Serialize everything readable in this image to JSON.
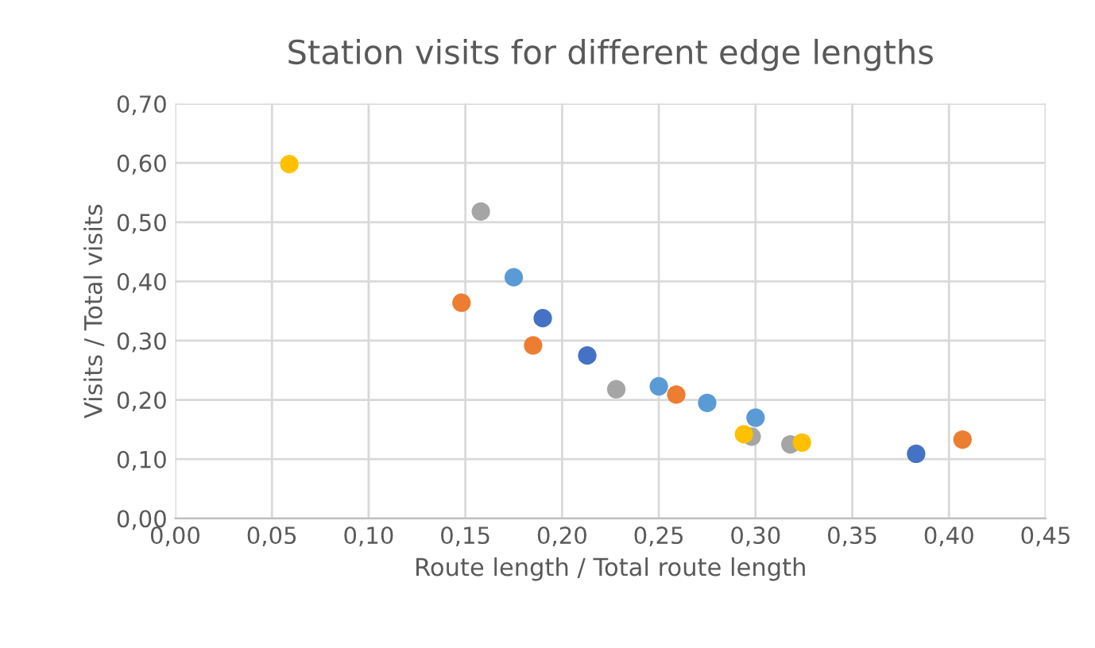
{
  "chart_data": {
    "type": "scatter",
    "title": "Station visits for different edge lengths",
    "xlabel": "Route length / Total route length",
    "ylabel": "Visits / Total visits",
    "xlim": [
      0,
      0.45
    ],
    "ylim": [
      0,
      0.7
    ],
    "xticks": [
      {
        "value": 0,
        "label": "0,00"
      },
      {
        "value": 0.05,
        "label": "0,05"
      },
      {
        "value": 0.1,
        "label": "0,10"
      },
      {
        "value": 0.15,
        "label": "0,15"
      },
      {
        "value": 0.2,
        "label": "0,20"
      },
      {
        "value": 0.25,
        "label": "0,25"
      },
      {
        "value": 0.3,
        "label": "0,30"
      },
      {
        "value": 0.35,
        "label": "0,35"
      },
      {
        "value": 0.4,
        "label": "0,40"
      },
      {
        "value": 0.45,
        "label": "0,45"
      }
    ],
    "yticks": [
      {
        "value": 0,
        "label": "0,00"
      },
      {
        "value": 0.1,
        "label": "0,10"
      },
      {
        "value": 0.2,
        "label": "0,20"
      },
      {
        "value": 0.3,
        "label": "0,30"
      },
      {
        "value": 0.4,
        "label": "0,40"
      },
      {
        "value": 0.5,
        "label": "0,50"
      },
      {
        "value": 0.6,
        "label": "0,60"
      },
      {
        "value": 0.7,
        "label": "0,70"
      }
    ],
    "grid": true,
    "marker": "circle",
    "series": [
      {
        "color": "#4472c4",
        "x": [
          0.19,
          0.213,
          0.383
        ],
        "values": [
          0.338,
          0.275,
          0.109
        ]
      },
      {
        "color": "#ed7d31",
        "x": [
          0.148,
          0.185,
          0.259,
          0.407
        ],
        "values": [
          0.364,
          0.292,
          0.209,
          0.133
        ]
      },
      {
        "color": "#a5a5a5",
        "x": [
          0.158,
          0.228,
          0.298,
          0.318
        ],
        "values": [
          0.518,
          0.218,
          0.138,
          0.125
        ]
      },
      {
        "color": "#5b9bd5",
        "x": [
          0.175,
          0.25,
          0.275,
          0.3
        ],
        "values": [
          0.407,
          0.223,
          0.195,
          0.17
        ]
      },
      {
        "color": "#ffc000",
        "x": [
          0.059,
          0.294,
          0.324
        ],
        "values": [
          0.598,
          0.142,
          0.128
        ]
      }
    ]
  }
}
